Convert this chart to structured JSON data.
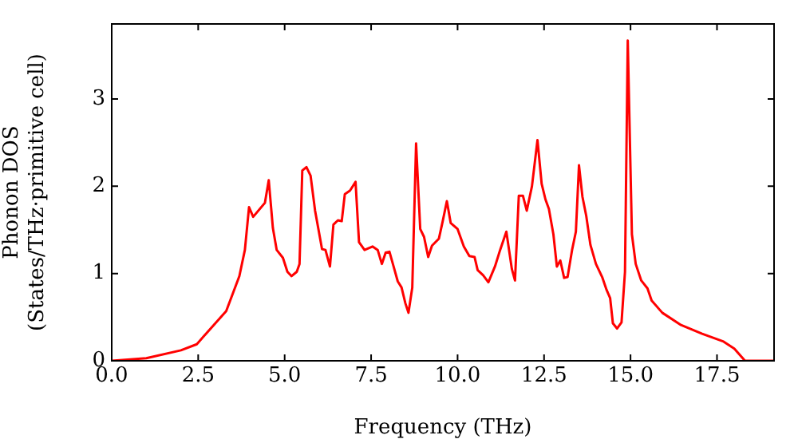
{
  "chart_data": {
    "type": "line",
    "xlabel": "Frequency (THz)",
    "ylabel": "Phonon DOS\n(States/THz·primitive cell)",
    "xlim": [
      0,
      19.15
    ],
    "ylim": [
      0,
      3.86
    ],
    "xticks": [
      {
        "value": 0,
        "label": "0.0"
      },
      {
        "value": 2.5,
        "label": "2.5"
      },
      {
        "value": 5,
        "label": "5.0"
      },
      {
        "value": 7.5,
        "label": "7.5"
      },
      {
        "value": 10,
        "label": "10.0"
      },
      {
        "value": 12.5,
        "label": "12.5"
      },
      {
        "value": 15,
        "label": "15.0"
      },
      {
        "value": 17.5,
        "label": "17.5"
      }
    ],
    "yticks": [
      0,
      1,
      2,
      3
    ],
    "grid": false,
    "x": [
      0,
      1.0,
      2.0,
      2.46,
      2.77,
      3.31,
      3.69,
      3.85,
      3.97,
      4.09,
      4.43,
      4.54,
      4.66,
      4.77,
      4.95,
      5.08,
      5.2,
      5.35,
      5.43,
      5.51,
      5.63,
      5.75,
      5.88,
      6.08,
      6.18,
      6.31,
      6.41,
      6.54,
      6.65,
      6.74,
      6.89,
      7.05,
      7.15,
      7.31,
      7.54,
      7.69,
      7.81,
      7.92,
      8.03,
      8.15,
      8.27,
      8.38,
      8.49,
      8.58,
      8.69,
      8.8,
      8.92,
      9.03,
      9.15,
      9.26,
      9.46,
      9.57,
      9.69,
      9.8,
      10.0,
      10.18,
      10.34,
      10.49,
      10.58,
      10.74,
      10.89,
      11.08,
      11.23,
      11.41,
      11.57,
      11.66,
      11.77,
      11.89,
      12.0,
      12.15,
      12.31,
      12.43,
      12.54,
      12.64,
      12.77,
      12.87,
      12.97,
      13.08,
      13.18,
      13.31,
      13.42,
      13.51,
      13.61,
      13.72,
      13.84,
      14.0,
      14.18,
      14.31,
      14.41,
      14.49,
      14.61,
      14.74,
      14.84,
      14.92,
      15.04,
      15.15,
      15.31,
      15.49,
      15.61,
      15.92,
      16.46,
      17.07,
      17.69,
      18.0,
      18.31,
      19.15
    ],
    "series": [
      {
        "color": "#ff0000",
        "values": [
          0,
          0.03,
          0.12,
          0.19,
          0.33,
          0.57,
          0.97,
          1.27,
          1.76,
          1.65,
          1.81,
          2.07,
          1.52,
          1.27,
          1.18,
          1.02,
          0.97,
          1.02,
          1.11,
          2.18,
          2.22,
          2.12,
          1.72,
          1.28,
          1.27,
          1.08,
          1.56,
          1.61,
          1.6,
          1.91,
          1.95,
          2.05,
          1.36,
          1.27,
          1.31,
          1.27,
          1.11,
          1.24,
          1.25,
          1.08,
          0.91,
          0.84,
          0.66,
          0.55,
          0.84,
          2.49,
          1.51,
          1.42,
          1.19,
          1.32,
          1.4,
          1.6,
          1.83,
          1.58,
          1.51,
          1.31,
          1.2,
          1.19,
          1.04,
          0.98,
          0.9,
          1.08,
          1.27,
          1.48,
          1.05,
          0.92,
          1.89,
          1.89,
          1.72,
          2.0,
          2.53,
          2.03,
          1.85,
          1.74,
          1.45,
          1.08,
          1.15,
          0.95,
          0.96,
          1.27,
          1.48,
          2.24,
          1.88,
          1.66,
          1.33,
          1.11,
          0.96,
          0.81,
          0.72,
          0.43,
          0.37,
          0.44,
          1.02,
          3.67,
          1.45,
          1.11,
          0.92,
          0.83,
          0.69,
          0.55,
          0.41,
          0.31,
          0.22,
          0.14,
          0,
          0
        ]
      }
    ]
  }
}
